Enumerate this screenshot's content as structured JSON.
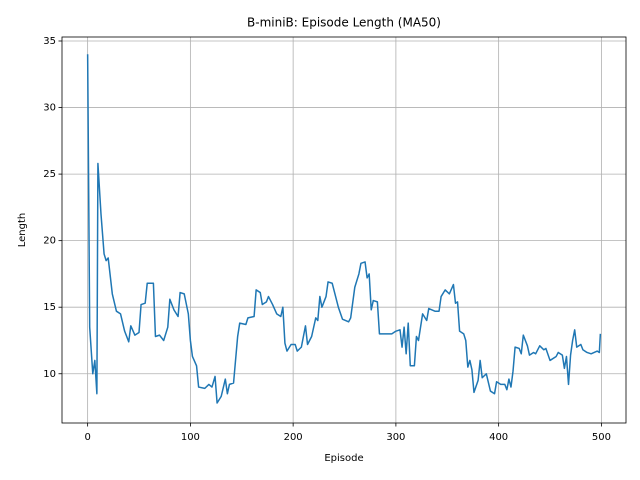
{
  "chart_data": {
    "type": "line",
    "title": "B-miniB: Episode Length (MA50)",
    "x_label": "Episode",
    "y_label": "Length",
    "x": [
      0,
      2,
      5,
      7,
      9,
      10,
      13,
      16,
      18,
      20,
      24,
      28,
      32,
      36,
      40,
      42,
      46,
      50,
      52,
      56,
      58,
      64,
      66,
      70,
      74,
      78,
      80,
      84,
      88,
      90,
      94,
      98,
      100,
      102,
      106,
      108,
      114,
      118,
      121,
      124,
      126,
      130,
      134,
      136,
      138,
      142,
      146,
      148,
      154,
      156,
      162,
      164,
      168,
      170,
      174,
      176,
      180,
      184,
      188,
      190,
      192,
      194,
      198,
      202,
      204,
      208,
      212,
      214,
      218,
      222,
      224,
      226,
      228,
      232,
      234,
      238,
      240,
      244,
      248,
      254,
      256,
      260,
      264,
      266,
      270,
      272,
      274,
      276,
      278,
      282,
      284,
      290,
      296,
      300,
      304,
      306,
      308,
      310,
      312,
      314,
      318,
      320,
      322,
      326,
      330,
      332,
      338,
      342,
      344,
      348,
      352,
      356,
      358,
      360,
      362,
      366,
      368,
      370,
      372,
      374,
      376,
      380,
      382,
      384,
      388,
      392,
      396,
      398,
      402,
      406,
      408,
      410,
      412,
      414,
      416,
      420,
      422,
      424,
      428,
      430,
      434,
      436,
      440,
      444,
      446,
      450,
      456,
      458,
      462,
      464,
      466,
      468,
      470,
      472,
      474,
      476,
      480,
      482,
      486,
      490,
      496,
      498,
      499
    ],
    "series": [
      {
        "name": "Length",
        "color": "#1f77b4",
        "values": [
          34,
          13.5,
          10,
          11,
          8.5,
          25.8,
          22,
          19,
          18.5,
          18.7,
          16,
          14.7,
          14.5,
          13.2,
          12.4,
          13.6,
          12.9,
          13.1,
          15.2,
          15.3,
          16.8,
          16.8,
          12.8,
          12.9,
          12.5,
          13.5,
          15.6,
          14.8,
          14.3,
          16.1,
          16.0,
          14.5,
          12.5,
          11.3,
          10.6,
          9.0,
          8.9,
          9.2,
          9.0,
          9.8,
          7.8,
          8.3,
          9.6,
          8.5,
          9.2,
          9.3,
          12.8,
          13.8,
          13.7,
          14.2,
          14.3,
          16.3,
          16.1,
          15.2,
          15.4,
          15.8,
          15.2,
          14.5,
          14.3,
          15.0,
          12.3,
          11.7,
          12.2,
          12.2,
          11.7,
          12.0,
          13.6,
          12.2,
          12.8,
          14.2,
          14.0,
          15.8,
          15.0,
          15.8,
          16.9,
          16.8,
          16.2,
          15.0,
          14.1,
          13.9,
          14.2,
          16.5,
          17.5,
          18.3,
          18.4,
          17.2,
          17.5,
          14.8,
          15.5,
          15.4,
          13.0,
          13.0,
          13.0,
          13.2,
          13.3,
          12.0,
          13.5,
          11.5,
          13.8,
          10.6,
          10.6,
          12.8,
          12.5,
          14.5,
          14.0,
          14.9,
          14.7,
          14.7,
          15.8,
          16.3,
          16.0,
          16.7,
          15.3,
          15.4,
          13.2,
          13.0,
          12.5,
          10.5,
          11.0,
          10.3,
          8.6,
          9.5,
          11.0,
          9.7,
          10.0,
          8.7,
          8.5,
          9.4,
          9.2,
          9.2,
          8.8,
          9.6,
          9.0,
          10.2,
          12.0,
          11.9,
          11.5,
          12.9,
          12.1,
          11.4,
          11.6,
          11.5,
          12.1,
          11.8,
          11.9,
          11.0,
          11.3,
          11.6,
          11.4,
          10.4,
          11.3,
          9.2,
          11.4,
          12.5,
          13.3,
          12.0,
          12.2,
          11.8,
          11.6,
          11.5,
          11.7,
          11.6,
          13.0
        ]
      }
    ],
    "xlim": [
      -24.95,
      523.95
    ],
    "ylim": [
      6.3,
      35.3
    ],
    "xticks": [
      0,
      100,
      200,
      300,
      400,
      500
    ],
    "yticks": [
      10,
      15,
      20,
      25,
      30,
      35
    ],
    "grid": true
  }
}
